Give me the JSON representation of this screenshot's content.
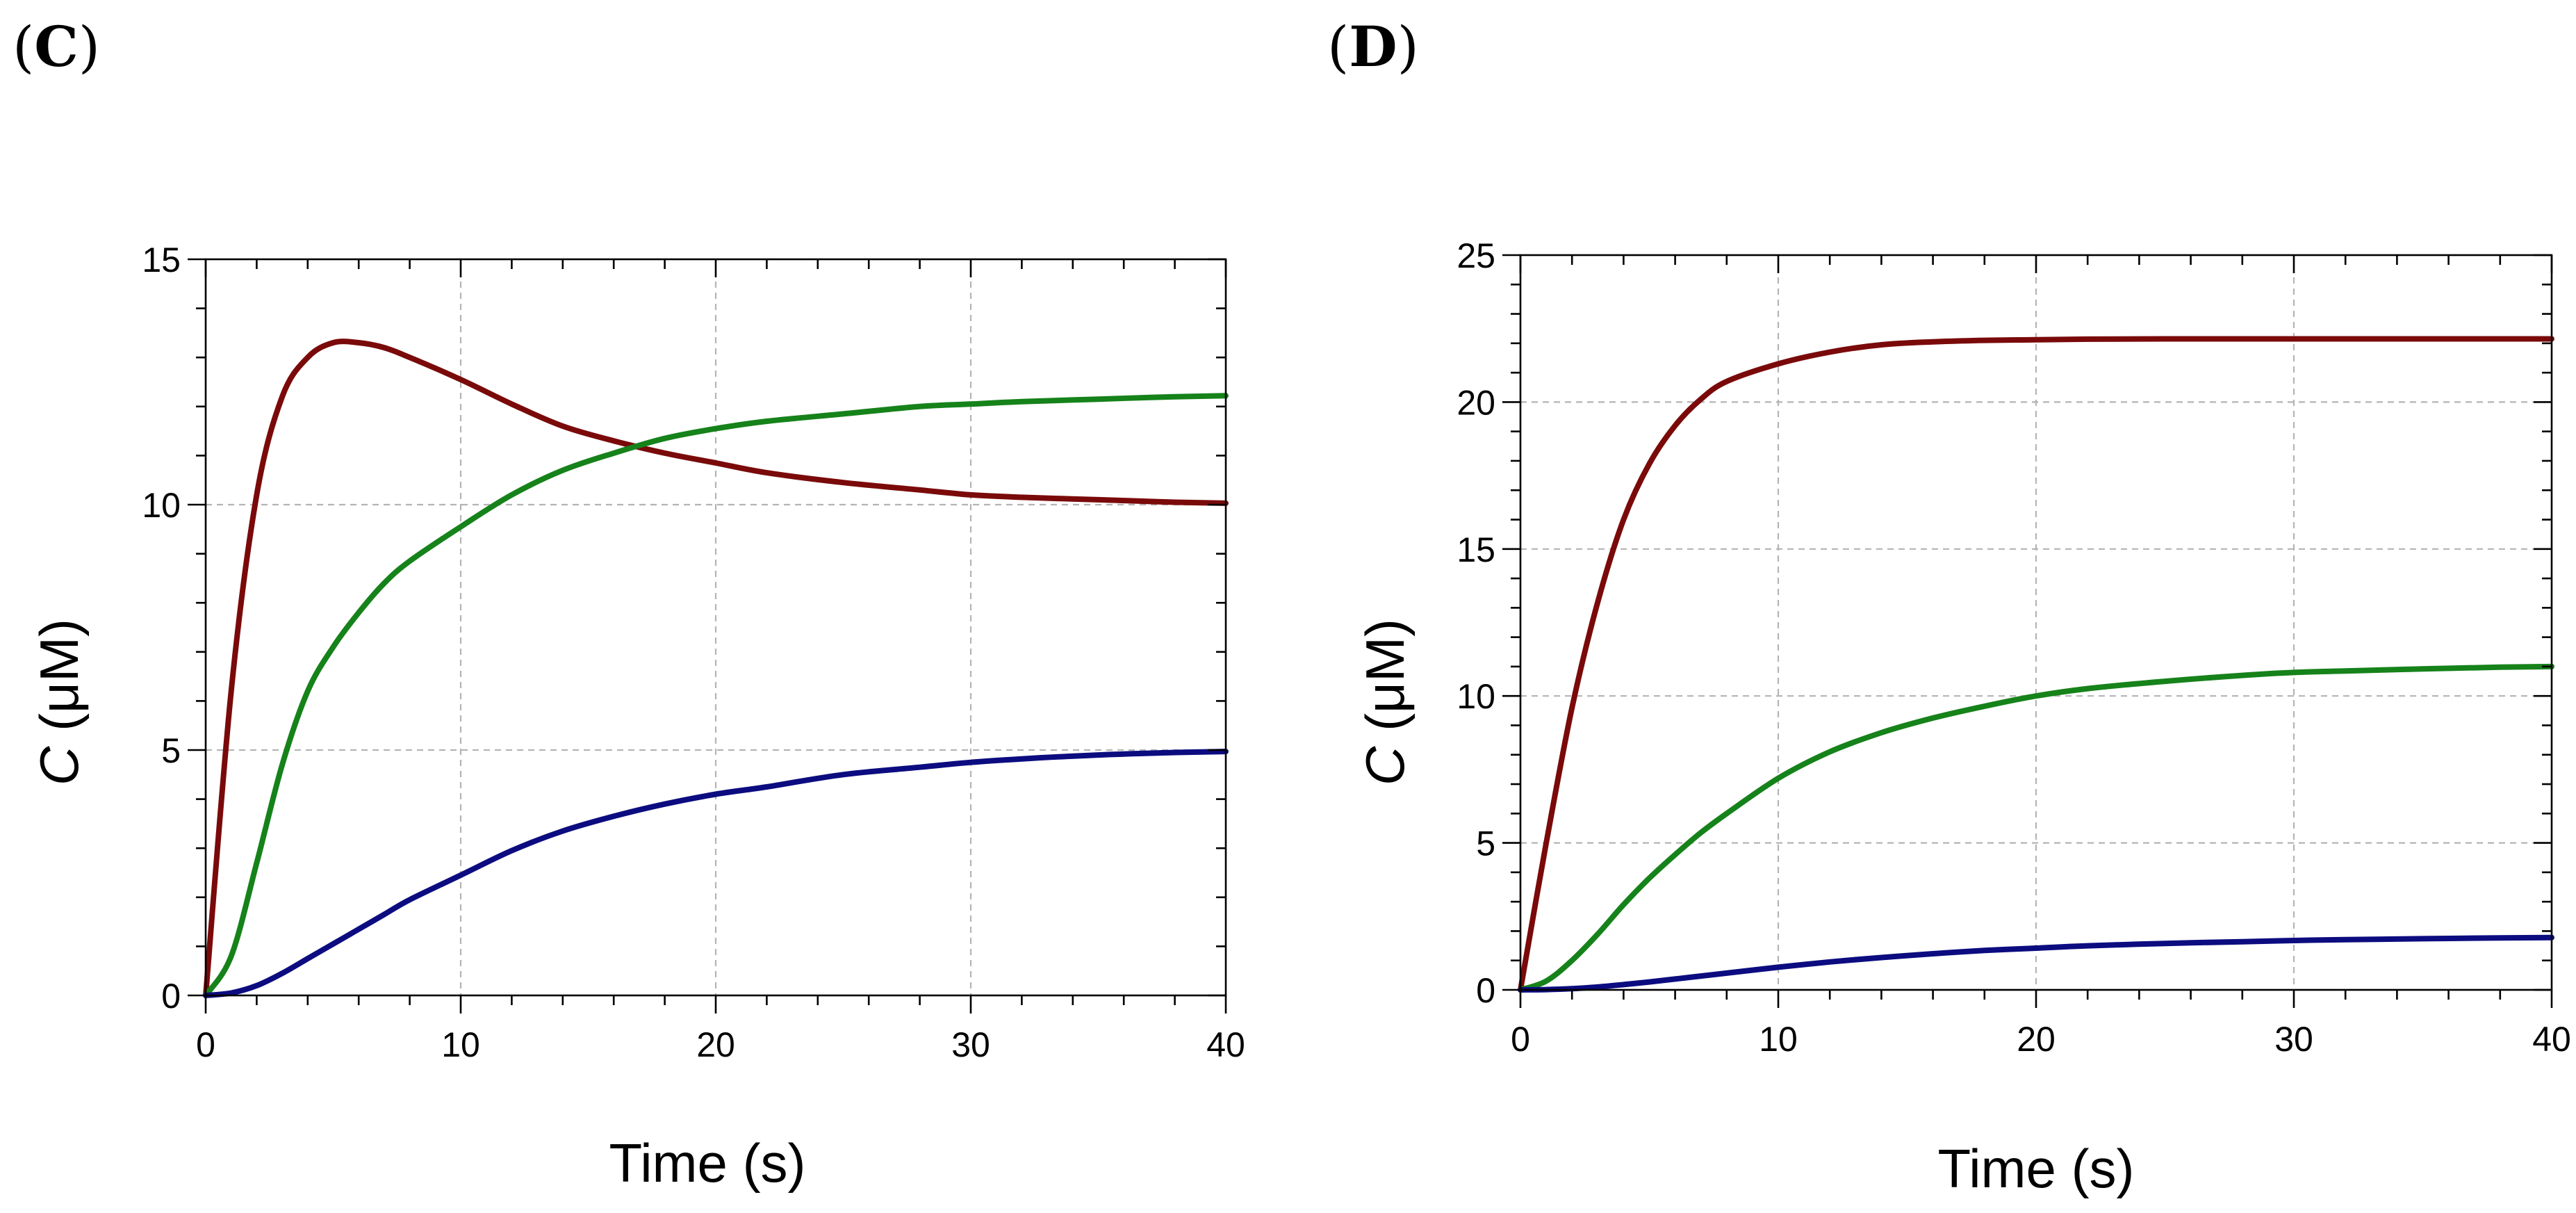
{
  "chart_data": [
    {
      "type": "line",
      "panel_label": {
        "open": "(",
        "letter": "C",
        "close": ")"
      },
      "xlabel": "Time (s)",
      "ylabel": {
        "symbol": "C",
        "unit": " (μM)"
      },
      "xlim": [
        0,
        40
      ],
      "ylim": [
        0,
        15
      ],
      "xticks": [
        0,
        10,
        20,
        30,
        40
      ],
      "yticks": [
        0,
        5,
        10,
        15
      ],
      "grid": true,
      "x": [
        0,
        1,
        2,
        3,
        4,
        5,
        6,
        7,
        8,
        10,
        12,
        14,
        16,
        18,
        20,
        22,
        25,
        28,
        30,
        32,
        35,
        38,
        40
      ],
      "series": [
        {
          "name": "dark red",
          "color": "#7a0a0a",
          "values": [
            0,
            6.2,
            10.2,
            12.2,
            13.0,
            13.3,
            13.3,
            13.2,
            13.0,
            12.55,
            12.05,
            11.6,
            11.3,
            11.05,
            10.85,
            10.65,
            10.45,
            10.3,
            10.2,
            10.15,
            10.1,
            10.05,
            10.03
          ]
        },
        {
          "name": "green",
          "color": "#16821a",
          "values": [
            0,
            0.8,
            2.7,
            4.7,
            6.2,
            7.1,
            7.8,
            8.4,
            8.85,
            9.55,
            10.2,
            10.7,
            11.05,
            11.35,
            11.55,
            11.7,
            11.85,
            12.0,
            12.05,
            12.1,
            12.15,
            12.2,
            12.22
          ]
        },
        {
          "name": "navy",
          "color": "#0c0c80",
          "values": [
            0,
            0.05,
            0.2,
            0.45,
            0.75,
            1.05,
            1.35,
            1.65,
            1.95,
            2.45,
            2.95,
            3.35,
            3.65,
            3.9,
            4.1,
            4.25,
            4.5,
            4.65,
            4.75,
            4.82,
            4.9,
            4.95,
            4.97
          ]
        }
      ]
    },
    {
      "type": "line",
      "panel_label": {
        "open": "(",
        "letter": "D",
        "close": ")"
      },
      "xlabel": "Time (s)",
      "ylabel": {
        "symbol": "C",
        "unit": " (μM)"
      },
      "xlim": [
        0,
        40
      ],
      "ylim": [
        0,
        25
      ],
      "xticks": [
        0,
        10,
        20,
        30,
        40
      ],
      "yticks": [
        0,
        5,
        10,
        15,
        20,
        25
      ],
      "grid": true,
      "x": [
        0,
        1,
        2,
        3,
        4,
        5,
        6,
        7,
        8,
        10,
        12,
        14,
        16,
        18,
        20,
        22,
        25,
        28,
        30,
        32,
        35,
        38,
        40
      ],
      "series": [
        {
          "name": "dark red",
          "color": "#7a0a0a",
          "values": [
            0,
            5.0,
            9.6,
            13.2,
            16.0,
            17.9,
            19.2,
            20.1,
            20.7,
            21.3,
            21.7,
            21.95,
            22.05,
            22.1,
            22.12,
            22.14,
            22.15,
            22.15,
            22.15,
            22.15,
            22.15,
            22.15,
            22.15
          ]
        },
        {
          "name": "green",
          "color": "#16821a",
          "values": [
            0,
            0.3,
            1.0,
            1.9,
            2.9,
            3.8,
            4.6,
            5.35,
            6.0,
            7.2,
            8.1,
            8.75,
            9.25,
            9.65,
            10.0,
            10.25,
            10.5,
            10.7,
            10.8,
            10.85,
            10.92,
            10.98,
            11.0
          ]
        },
        {
          "name": "navy",
          "color": "#0c0c80",
          "values": [
            0,
            0.01,
            0.04,
            0.1,
            0.18,
            0.27,
            0.37,
            0.47,
            0.57,
            0.77,
            0.95,
            1.1,
            1.23,
            1.34,
            1.42,
            1.5,
            1.58,
            1.64,
            1.68,
            1.71,
            1.74,
            1.77,
            1.78
          ]
        }
      ]
    }
  ]
}
